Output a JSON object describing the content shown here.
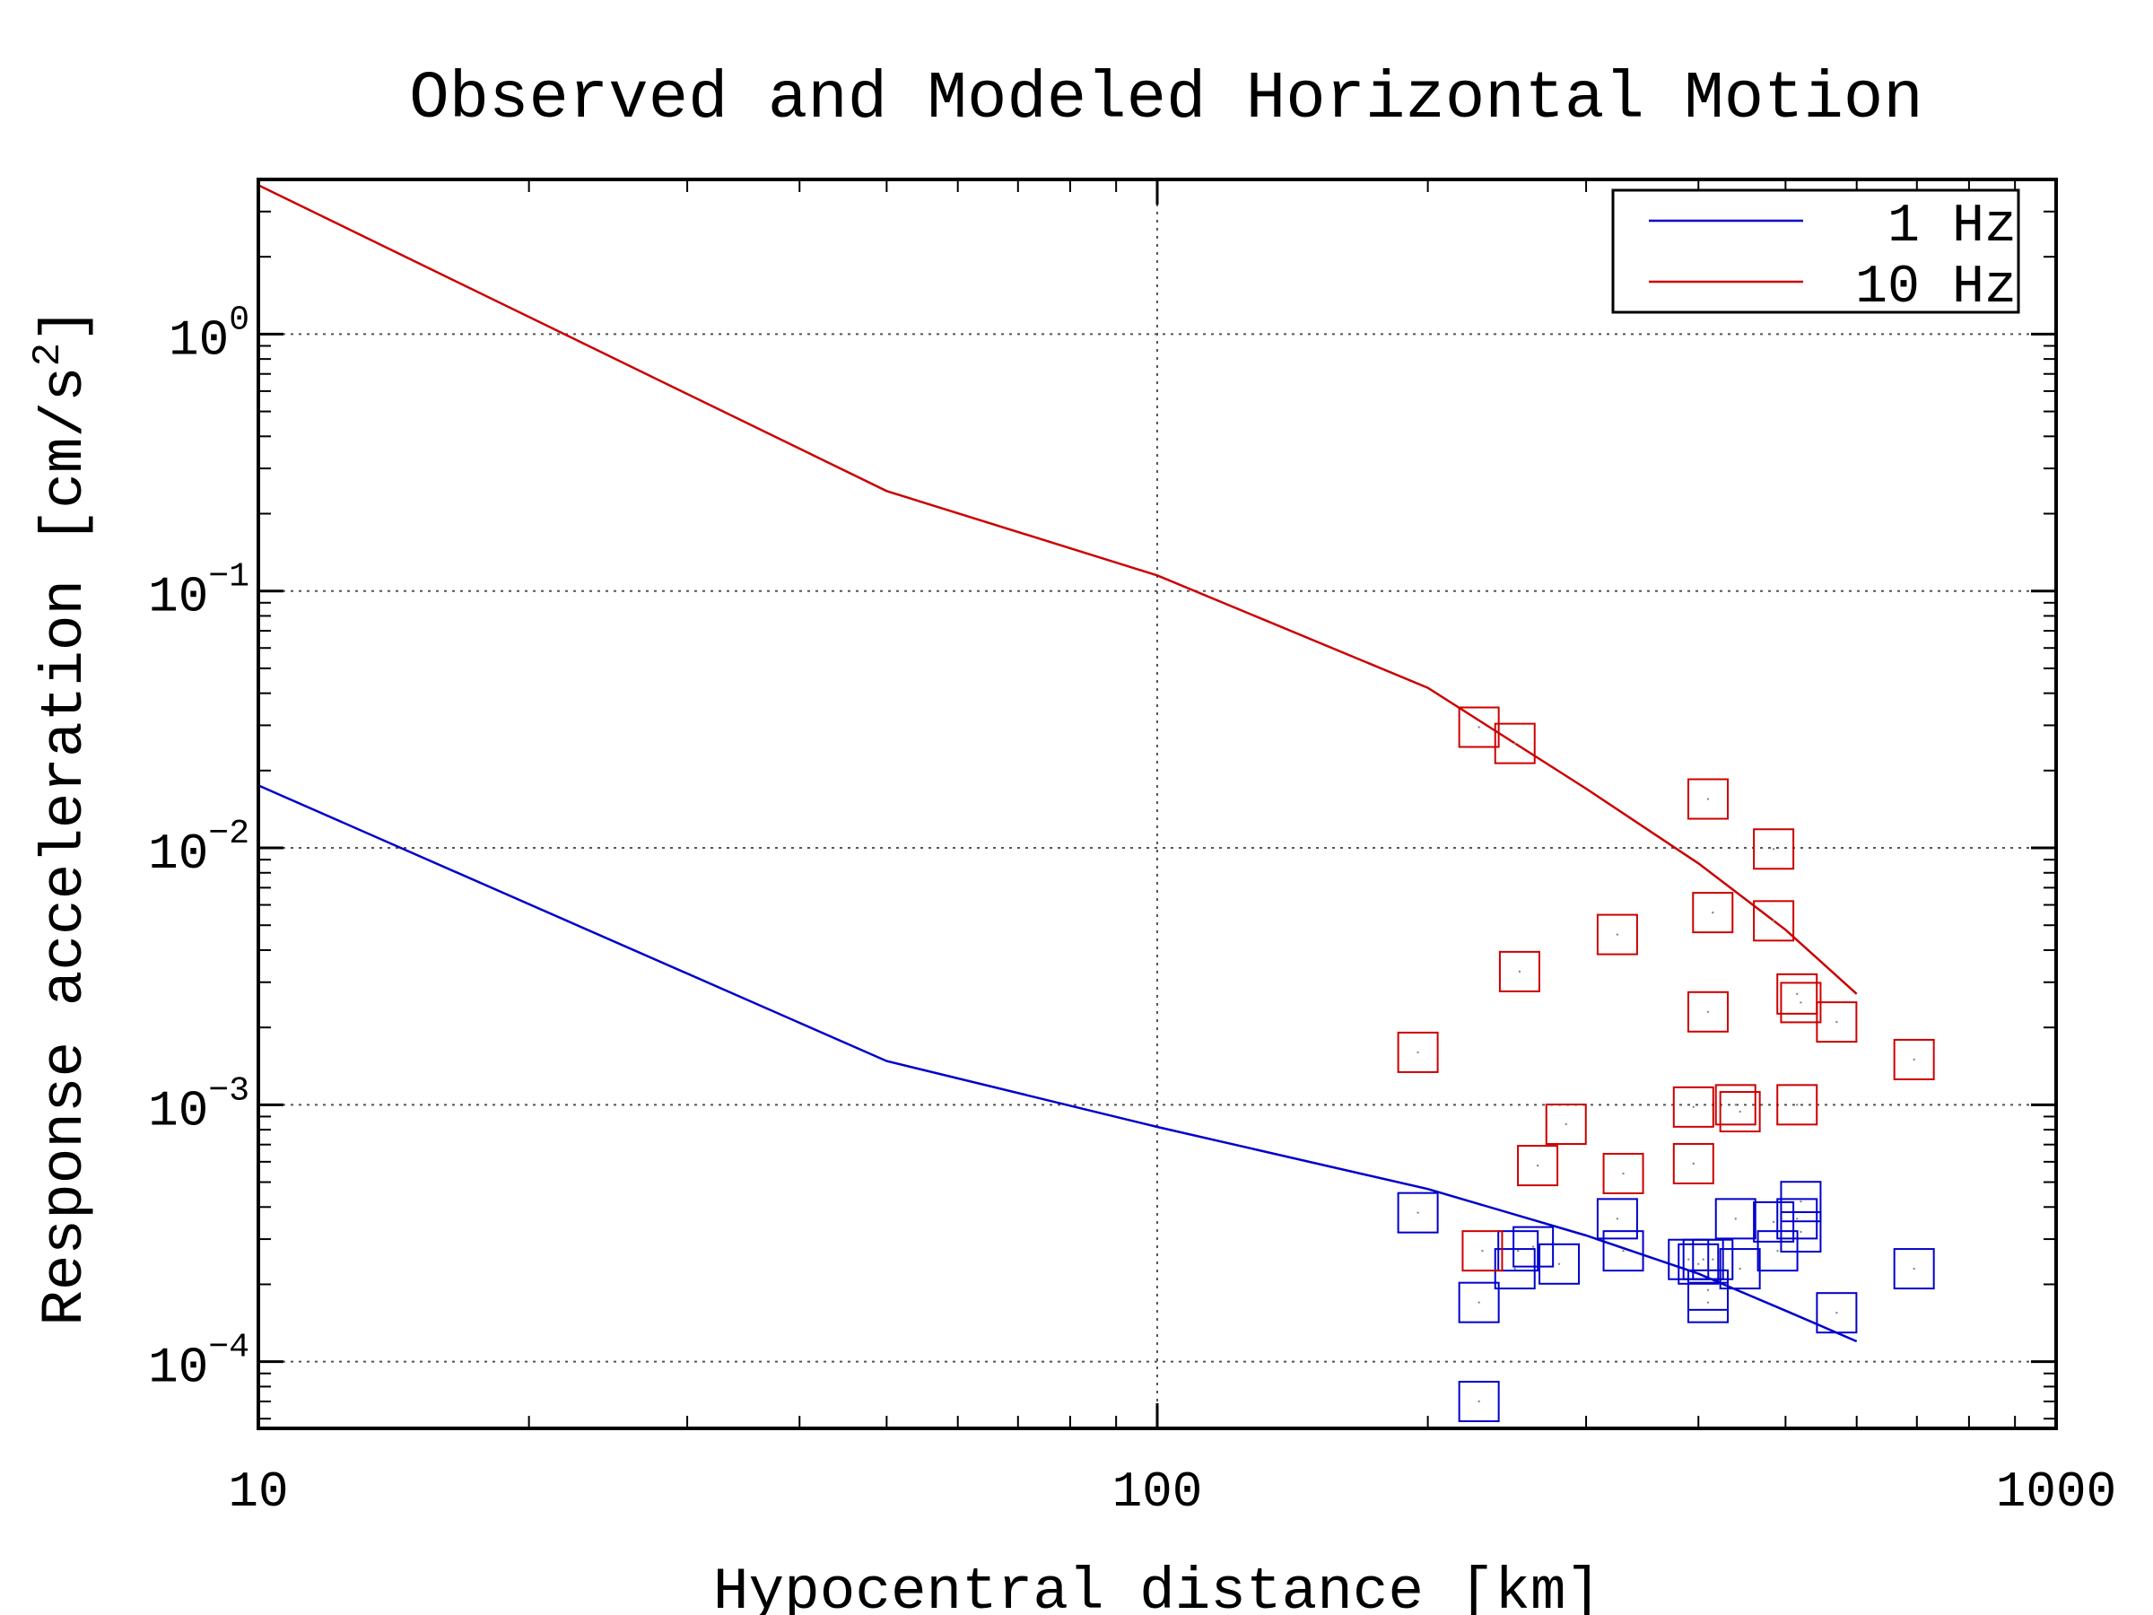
{
  "chart_data": {
    "type": "scatter",
    "title": "Observed and Modeled Horizontal Motion",
    "xlabel": "Hypocentral distance [km]",
    "ylabel_main": "Response acceleration [cm/s",
    "ylabel_sup": "2",
    "ylabel_end": "]",
    "x_scale": "log",
    "y_scale": "log",
    "xlim": [
      10,
      1000
    ],
    "ylim": [
      5.5e-05,
      4.0
    ],
    "grid": true,
    "legend_position": "top-right",
    "x_ticks": [
      {
        "value": 10,
        "label": "10"
      },
      {
        "value": 100,
        "label": "100"
      },
      {
        "value": 1000,
        "label": "1000"
      }
    ],
    "y_ticks": [
      {
        "value": 1,
        "base": "10",
        "exp": "0"
      },
      {
        "value": 0.1,
        "base": "10",
        "exp": "−1"
      },
      {
        "value": 0.01,
        "base": "10",
        "exp": "−2"
      },
      {
        "value": 0.001,
        "base": "10",
        "exp": "−3"
      },
      {
        "value": 0.0001,
        "base": "10",
        "exp": "−4"
      }
    ],
    "series": [
      {
        "name": "1 Hz",
        "color": "#0000cc",
        "model": [
          [
            10,
            0.0175
          ],
          [
            50,
            0.00148
          ],
          [
            100,
            0.00082
          ],
          [
            200,
            0.00047
          ],
          [
            300,
            0.00031
          ],
          [
            400,
            0.00022
          ],
          [
            500,
            0.000158
          ],
          [
            600,
            0.00012
          ]
        ],
        "observed": [
          [
            195,
            0.00038
          ],
          [
            228,
            0.00017
          ],
          [
            228,
            7e-05
          ],
          [
            252,
            0.00027
          ],
          [
            250,
            0.00023
          ],
          [
            262,
            0.00028
          ],
          [
            280,
            0.00024
          ],
          [
            325,
            0.00036
          ],
          [
            330,
            0.00027
          ],
          [
            390,
            0.00025
          ],
          [
            400,
            0.00024
          ],
          [
            405,
            0.00025
          ],
          [
            410,
            0.00019
          ],
          [
            410,
            0.00017
          ],
          [
            415,
            0.00025
          ],
          [
            440,
            0.00036
          ],
          [
            445,
            0.00023
          ],
          [
            485,
            0.00035
          ],
          [
            490,
            0.00027
          ],
          [
            520,
            0.00042
          ],
          [
            515,
            0.00036
          ],
          [
            520,
            0.00032
          ],
          [
            570,
            0.000155
          ],
          [
            695,
            0.00023
          ]
        ]
      },
      {
        "name": "10 Hz",
        "color": "#cc0000",
        "model": [
          [
            10,
            3.8
          ],
          [
            50,
            0.245
          ],
          [
            100,
            0.115
          ],
          [
            200,
            0.042
          ],
          [
            300,
            0.017
          ],
          [
            400,
            0.0087
          ],
          [
            500,
            0.0048
          ],
          [
            600,
            0.0027
          ]
        ],
        "observed": [
          [
            195,
            0.0016
          ],
          [
            228,
            0.0295
          ],
          [
            230,
            0.00027
          ],
          [
            250,
            0.0255
          ],
          [
            253,
            0.0033
          ],
          [
            265,
            0.00058
          ],
          [
            285,
            0.00084
          ],
          [
            325,
            0.0046
          ],
          [
            330,
            0.00054
          ],
          [
            395,
            0.00098
          ],
          [
            395,
            0.00059
          ],
          [
            410,
            0.0023
          ],
          [
            410,
            0.0155
          ],
          [
            415,
            0.0056
          ],
          [
            440,
            0.001
          ],
          [
            445,
            0.00094
          ],
          [
            485,
            0.0099
          ],
          [
            485,
            0.0052
          ],
          [
            515,
            0.0027
          ],
          [
            515,
            0.001
          ],
          [
            520,
            0.0025
          ],
          [
            570,
            0.0021
          ],
          [
            695,
            0.0015
          ]
        ]
      }
    ]
  }
}
